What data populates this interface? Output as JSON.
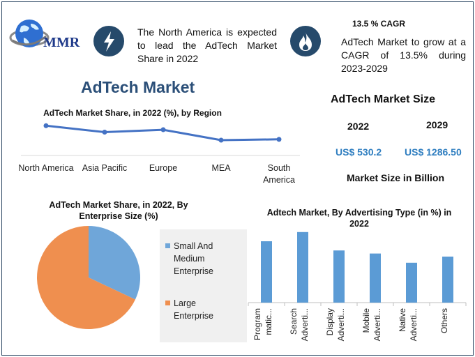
{
  "logo": {
    "text": "MMR"
  },
  "header": {
    "blurb_left": "The North America is expected to lead the AdTech Market Share in 2022",
    "cagr_title": "13.5 % CAGR",
    "blurb_right": "AdTech Market to grow at a CAGR of 13.5% during 2023-2029",
    "icon_left": "lightning-icon",
    "icon_right": "flame-icon"
  },
  "main_title": "AdTech Market",
  "market_size": {
    "title": "AdTech Market Size",
    "year_a": "2022",
    "year_b": "2029",
    "value_a": "US$ 530.2",
    "value_b": "US$ 1286.50",
    "unit_note": "Market Size in Billion"
  },
  "colors": {
    "accent": "#4472c4",
    "blue_bar": "#5b9bd5",
    "orange": "#ed8d4e",
    "navy": "#264a6b"
  },
  "chart_data": [
    {
      "type": "line",
      "title": "AdTech Market Share, in 2022 (%), by Region",
      "categories": [
        "North America",
        "Asia Pacific",
        "Europe",
        "MEA",
        "South America"
      ],
      "values": [
        38,
        30,
        33,
        20,
        21
      ],
      "ylim": [
        0,
        40
      ]
    },
    {
      "type": "pie",
      "title": "AdTech Market Share, in 2022, By Enterprise Size (%)",
      "labels": [
        "Small And Medium Enterprise",
        "Large Enterprise"
      ],
      "values": [
        32,
        68
      ],
      "colors": [
        "#6fa6d9",
        "#ef8f4f"
      ]
    },
    {
      "type": "bar",
      "title": "Adtech Market, By Advertising Type (in %) in 2022",
      "categories": [
        "Programmatic Advertising",
        "Search Advertising",
        "Display Advertising",
        "Mobile Advertising",
        "Native Advertising",
        "Others"
      ],
      "tick_labels": [
        [
          "Program",
          "matic..."
        ],
        [
          "Search",
          "Adverti..."
        ],
        [
          "Display",
          "Adverti..."
        ],
        [
          "Mobile",
          "Adverti..."
        ],
        [
          "Native",
          "Adverti..."
        ],
        [
          "Others"
        ]
      ],
      "values": [
        20,
        23,
        17,
        16,
        13,
        15
      ],
      "ylim": [
        0,
        25
      ]
    }
  ]
}
